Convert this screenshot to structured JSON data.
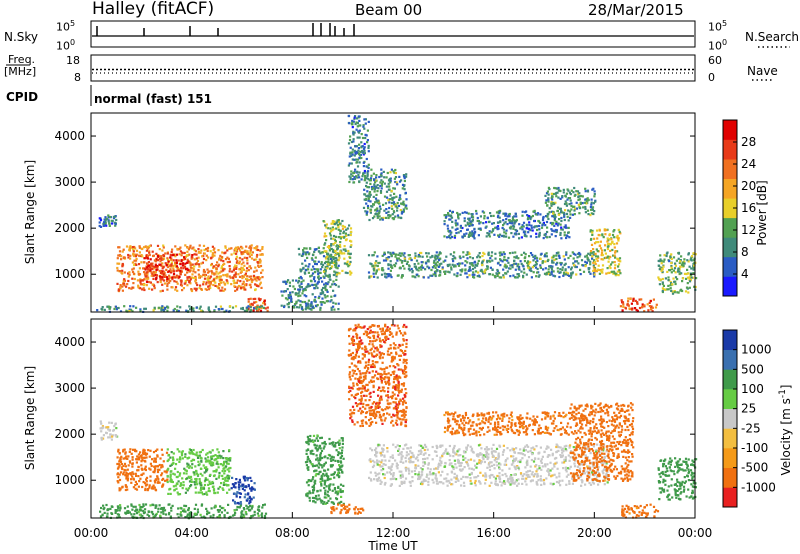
{
  "header": {
    "title": "Halley (fitACF)",
    "beam": "Beam 00",
    "date": "28/Mar/2015"
  },
  "nsky_panel": {
    "left_label": "N.Sky",
    "left_ticks": [
      "10^5",
      "10^0"
    ],
    "right_label": "N.Search",
    "right_ticks": [
      "10^5",
      "10^0"
    ]
  },
  "freq_panel": {
    "left_label_line1": "Freq.",
    "left_label_line2": "[MHz]",
    "left_ticks": [
      "18",
      "8"
    ],
    "right_label": "Nave",
    "right_ticks": [
      "60",
      "0"
    ]
  },
  "cpid_panel": {
    "label": "CPID",
    "program": "normal (fast) 151"
  },
  "colors": {
    "power_scale": [
      "#1a1aff",
      "#2a5cc4",
      "#3f8a7a",
      "#52a152",
      "#e8cf2a",
      "#f5a524",
      "#f07020",
      "#e83a18",
      "#e00000"
    ],
    "velocity_scale": [
      "#e82020",
      "#f07010",
      "#f59a18",
      "#f3be40",
      "#c8c8c8",
      "#66cc44",
      "#3f9a4a",
      "#3a70b0",
      "#1a3aa8"
    ],
    "line": "#000000"
  },
  "chart_data": [
    {
      "type": "heatmap",
      "name": "power",
      "xlabel": "",
      "ylabel": "Slant Range [km]",
      "xlim": [
        0,
        24
      ],
      "ylim": [
        180,
        4500
      ],
      "y_ticks": [
        "1000",
        "2000",
        "3000",
        "4000"
      ],
      "y_tick_values": [
        1000,
        2000,
        3000,
        4000
      ],
      "colorbar": {
        "label": "Power [dB]",
        "range": [
          0,
          32
        ],
        "ticks": [
          "4",
          "8",
          "12",
          "16",
          "20",
          "24",
          "28"
        ],
        "tick_values": [
          4,
          8,
          12,
          16,
          20,
          24,
          28
        ]
      },
      "regions": [
        {
          "t": [
            0.3,
            1.0
          ],
          "r": [
            2050,
            2300
          ],
          "v": 7
        },
        {
          "t": [
            1.0,
            6.8
          ],
          "r": [
            650,
            1650
          ],
          "v": 22
        },
        {
          "t": [
            2.0,
            4.0
          ],
          "r": [
            850,
            1450
          ],
          "v": 27
        },
        {
          "t": [
            6.2,
            7.0
          ],
          "r": [
            220,
            500
          ],
          "v": 25
        },
        {
          "t": [
            0.2,
            7.0
          ],
          "r": [
            200,
            330
          ],
          "v": 10
        },
        {
          "t": [
            7.5,
            8.2
          ],
          "r": [
            300,
            900
          ],
          "v": 9
        },
        {
          "t": [
            8.2,
            9.8
          ],
          "r": [
            250,
            1600
          ],
          "v": 9
        },
        {
          "t": [
            9.2,
            10.3
          ],
          "r": [
            1000,
            2200
          ],
          "v": 13
        },
        {
          "t": [
            10.2,
            11.0
          ],
          "r": [
            3000,
            4500
          ],
          "v": 8
        },
        {
          "t": [
            10.8,
            12.5
          ],
          "r": [
            2200,
            3300
          ],
          "v": 10
        },
        {
          "t": [
            11.0,
            20.0
          ],
          "r": [
            950,
            1500
          ],
          "v": 10
        },
        {
          "t": [
            14.0,
            19.0
          ],
          "r": [
            1800,
            2400
          ],
          "v": 8
        },
        {
          "t": [
            18.0,
            20.0
          ],
          "r": [
            2300,
            2900
          ],
          "v": 10
        },
        {
          "t": [
            19.8,
            21.0
          ],
          "r": [
            1000,
            2000
          ],
          "v": 16
        },
        {
          "t": [
            21.0,
            22.5
          ],
          "r": [
            200,
            500
          ],
          "v": 25
        },
        {
          "t": [
            22.5,
            24.0
          ],
          "r": [
            600,
            1500
          ],
          "v": 12
        }
      ]
    },
    {
      "type": "heatmap",
      "name": "velocity",
      "xlabel": "Time UT",
      "ylabel": "Slant Range [km]",
      "xlim": [
        0,
        24
      ],
      "ylim": [
        180,
        4500
      ],
      "x_ticks": [
        "00:00",
        "04:00",
        "08:00",
        "12:00",
        "16:00",
        "20:00",
        "00:00"
      ],
      "x_tick_values": [
        0,
        4,
        8,
        12,
        16,
        20,
        24
      ],
      "y_ticks": [
        "1000",
        "2000",
        "3000",
        "4000"
      ],
      "y_tick_values": [
        1000,
        2000,
        3000,
        4000
      ],
      "colorbar": {
        "label": "Velocity [m s^-1]",
        "ticks": [
          "1000",
          "500",
          "100",
          "25",
          "-25",
          "-100",
          "-500",
          "-1000"
        ],
        "tick_values": [
          1000,
          500,
          100,
          25,
          -25,
          -100,
          -500,
          -1000
        ]
      },
      "regions": [
        {
          "t": [
            0.3,
            1.0
          ],
          "r": [
            1900,
            2300
          ],
          "v": 0
        },
        {
          "t": [
            1.0,
            3.0
          ],
          "r": [
            800,
            1700
          ],
          "v": -300
        },
        {
          "t": [
            3.0,
            5.5
          ],
          "r": [
            700,
            1700
          ],
          "v": 80
        },
        {
          "t": [
            5.5,
            6.5
          ],
          "r": [
            500,
            1100
          ],
          "v": 900
        },
        {
          "t": [
            0.2,
            7.0
          ],
          "r": [
            200,
            500
          ],
          "v": 150
        },
        {
          "t": [
            8.5,
            10.0
          ],
          "r": [
            500,
            2000
          ],
          "v": 150
        },
        {
          "t": [
            9.5,
            10.8
          ],
          "r": [
            300,
            500
          ],
          "v": -200
        },
        {
          "t": [
            10.2,
            12.5
          ],
          "r": [
            2200,
            4400
          ],
          "v": -400
        },
        {
          "t": [
            11.0,
            20.5
          ],
          "r": [
            900,
            1800
          ],
          "v": 0
        },
        {
          "t": [
            14.0,
            19.0
          ],
          "r": [
            2000,
            2500
          ],
          "v": -150
        },
        {
          "t": [
            19.0,
            21.5
          ],
          "r": [
            1000,
            2700
          ],
          "v": -300
        },
        {
          "t": [
            21.0,
            22.5
          ],
          "r": [
            200,
            500
          ],
          "v": -150
        },
        {
          "t": [
            22.5,
            24.0
          ],
          "r": [
            600,
            1500
          ],
          "v": 200
        }
      ]
    }
  ]
}
